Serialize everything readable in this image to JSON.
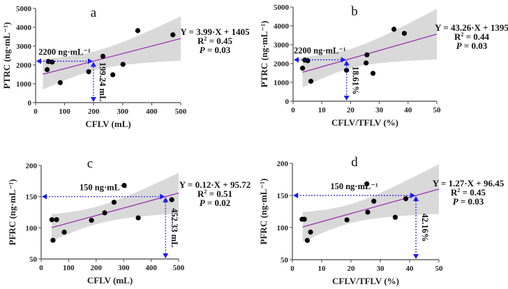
{
  "colors": {
    "band": "#d9d9d9",
    "fit": "#9b30b0",
    "point": "#000000",
    "annotation": "#1a1aff"
  },
  "chart_data": [
    {
      "type": "scatter",
      "panel": "a",
      "xlabel": "CFLV (mL)",
      "ylabel": "PTRC (ng·mL⁻¹)",
      "xlim": [
        0,
        500
      ],
      "ylim": [
        0,
        5000
      ],
      "xticks": [
        0,
        100,
        200,
        300,
        400,
        500
      ],
      "yticks": [
        0,
        1000,
        2000,
        3000,
        4000,
        5000
      ],
      "x": [
        40,
        44,
        57,
        85,
        183,
        232,
        266,
        301,
        352,
        473
      ],
      "y": [
        1750,
        2180,
        2150,
        1060,
        1640,
        2460,
        1480,
        2030,
        3820,
        3600
      ],
      "fit": {
        "slope": 3.99,
        "intercept": 1405,
        "range": [
          25,
          500
        ]
      },
      "equation": "Y = 3.99·X + 1405",
      "r2_label": "R",
      "r2_value": " = 0.45",
      "p_label": "P",
      "p_value": " = 0.03",
      "threshold": {
        "y": 2200,
        "x": 199.24,
        "y_label": "2200 ng·mL⁻¹",
        "x_label": "199.24 mL"
      }
    },
    {
      "type": "scatter",
      "panel": "b",
      "xlabel": "CFLV/TFLV (%)",
      "ylabel": "PTRC (ng·mL⁻¹)",
      "xlim": [
        0,
        50
      ],
      "ylim": [
        0,
        5000
      ],
      "xticks": [
        0,
        10,
        20,
        30,
        40,
        50
      ],
      "yticks": [
        0,
        1000,
        2000,
        3000,
        4000,
        5000
      ],
      "x": [
        3.3,
        4.1,
        5.1,
        6.2,
        18.6,
        25.7,
        27.8,
        25.4,
        35.1,
        38.7
      ],
      "y": [
        1750,
        2180,
        2150,
        1060,
        1640,
        2460,
        1480,
        2030,
        3820,
        3600
      ],
      "fit": {
        "slope": 43.26,
        "intercept": 1395,
        "range": [
          3.3,
          50
        ]
      },
      "equation": "Y = 43.26·X + 1395",
      "r2_label": "R",
      "r2_value": " = 0.44",
      "p_label": "P",
      "p_value": " = 0.03",
      "threshold": {
        "y": 2200,
        "x": 18.61,
        "y_label": "2200 ng·mL⁻¹",
        "x_label": "18.61%"
      }
    },
    {
      "type": "scatter",
      "panel": "c",
      "xlabel": "CFLV (mL)",
      "ylabel": "PFRC (ng·mL⁻¹)",
      "xlim": [
        0,
        500
      ],
      "ylim": [
        50,
        200
      ],
      "xticks": [
        0,
        100,
        200,
        300,
        400,
        500
      ],
      "yticks": [
        50,
        100,
        150,
        200
      ],
      "x": [
        39,
        56,
        43,
        84,
        183,
        231,
        265,
        302,
        353,
        475
      ],
      "y": [
        113,
        113,
        80,
        93,
        112,
        124,
        141,
        168,
        116,
        145
      ],
      "fit": {
        "slope": 0.12,
        "intercept": 95.72,
        "range": [
          38,
          500
        ]
      },
      "equation": "Y = 0.12·X + 95.72",
      "r2_label": "R",
      "r2_value": " = 0.51",
      "p_label": "P",
      "p_value": " = 0.02",
      "threshold": {
        "y": 150,
        "x": 452.33,
        "y_label": "150 ng·mL⁻¹",
        "x_label": "452.33 mL"
      }
    },
    {
      "type": "scatter",
      "panel": "d",
      "xlabel": "CFLV/TFLV (%)",
      "ylabel": "PFRC (ng·mL⁻¹)",
      "xlim": [
        0,
        50
      ],
      "ylim": [
        50,
        200
      ],
      "xticks": [
        0,
        10,
        20,
        30,
        40,
        50
      ],
      "yticks": [
        50,
        100,
        150,
        200
      ],
      "x": [
        3.3,
        4.1,
        5.1,
        6.2,
        18.6,
        25.7,
        27.8,
        25.4,
        35.1,
        38.7
      ],
      "y": [
        113,
        113,
        80,
        93,
        112,
        124,
        141,
        168,
        116,
        145
      ],
      "fit": {
        "slope": 1.27,
        "intercept": 96.45,
        "range": [
          3.5,
          50
        ]
      },
      "equation": "Y = 1.27·X + 96.45",
      "r2_label": "R",
      "r2_value": " = 0.45",
      "p_label": "P",
      "p_value": " = 0.03",
      "threshold": {
        "y": 150,
        "x": 42.16,
        "y_label": "150 ng·mL⁻¹",
        "x_label": "42.16%"
      }
    }
  ]
}
